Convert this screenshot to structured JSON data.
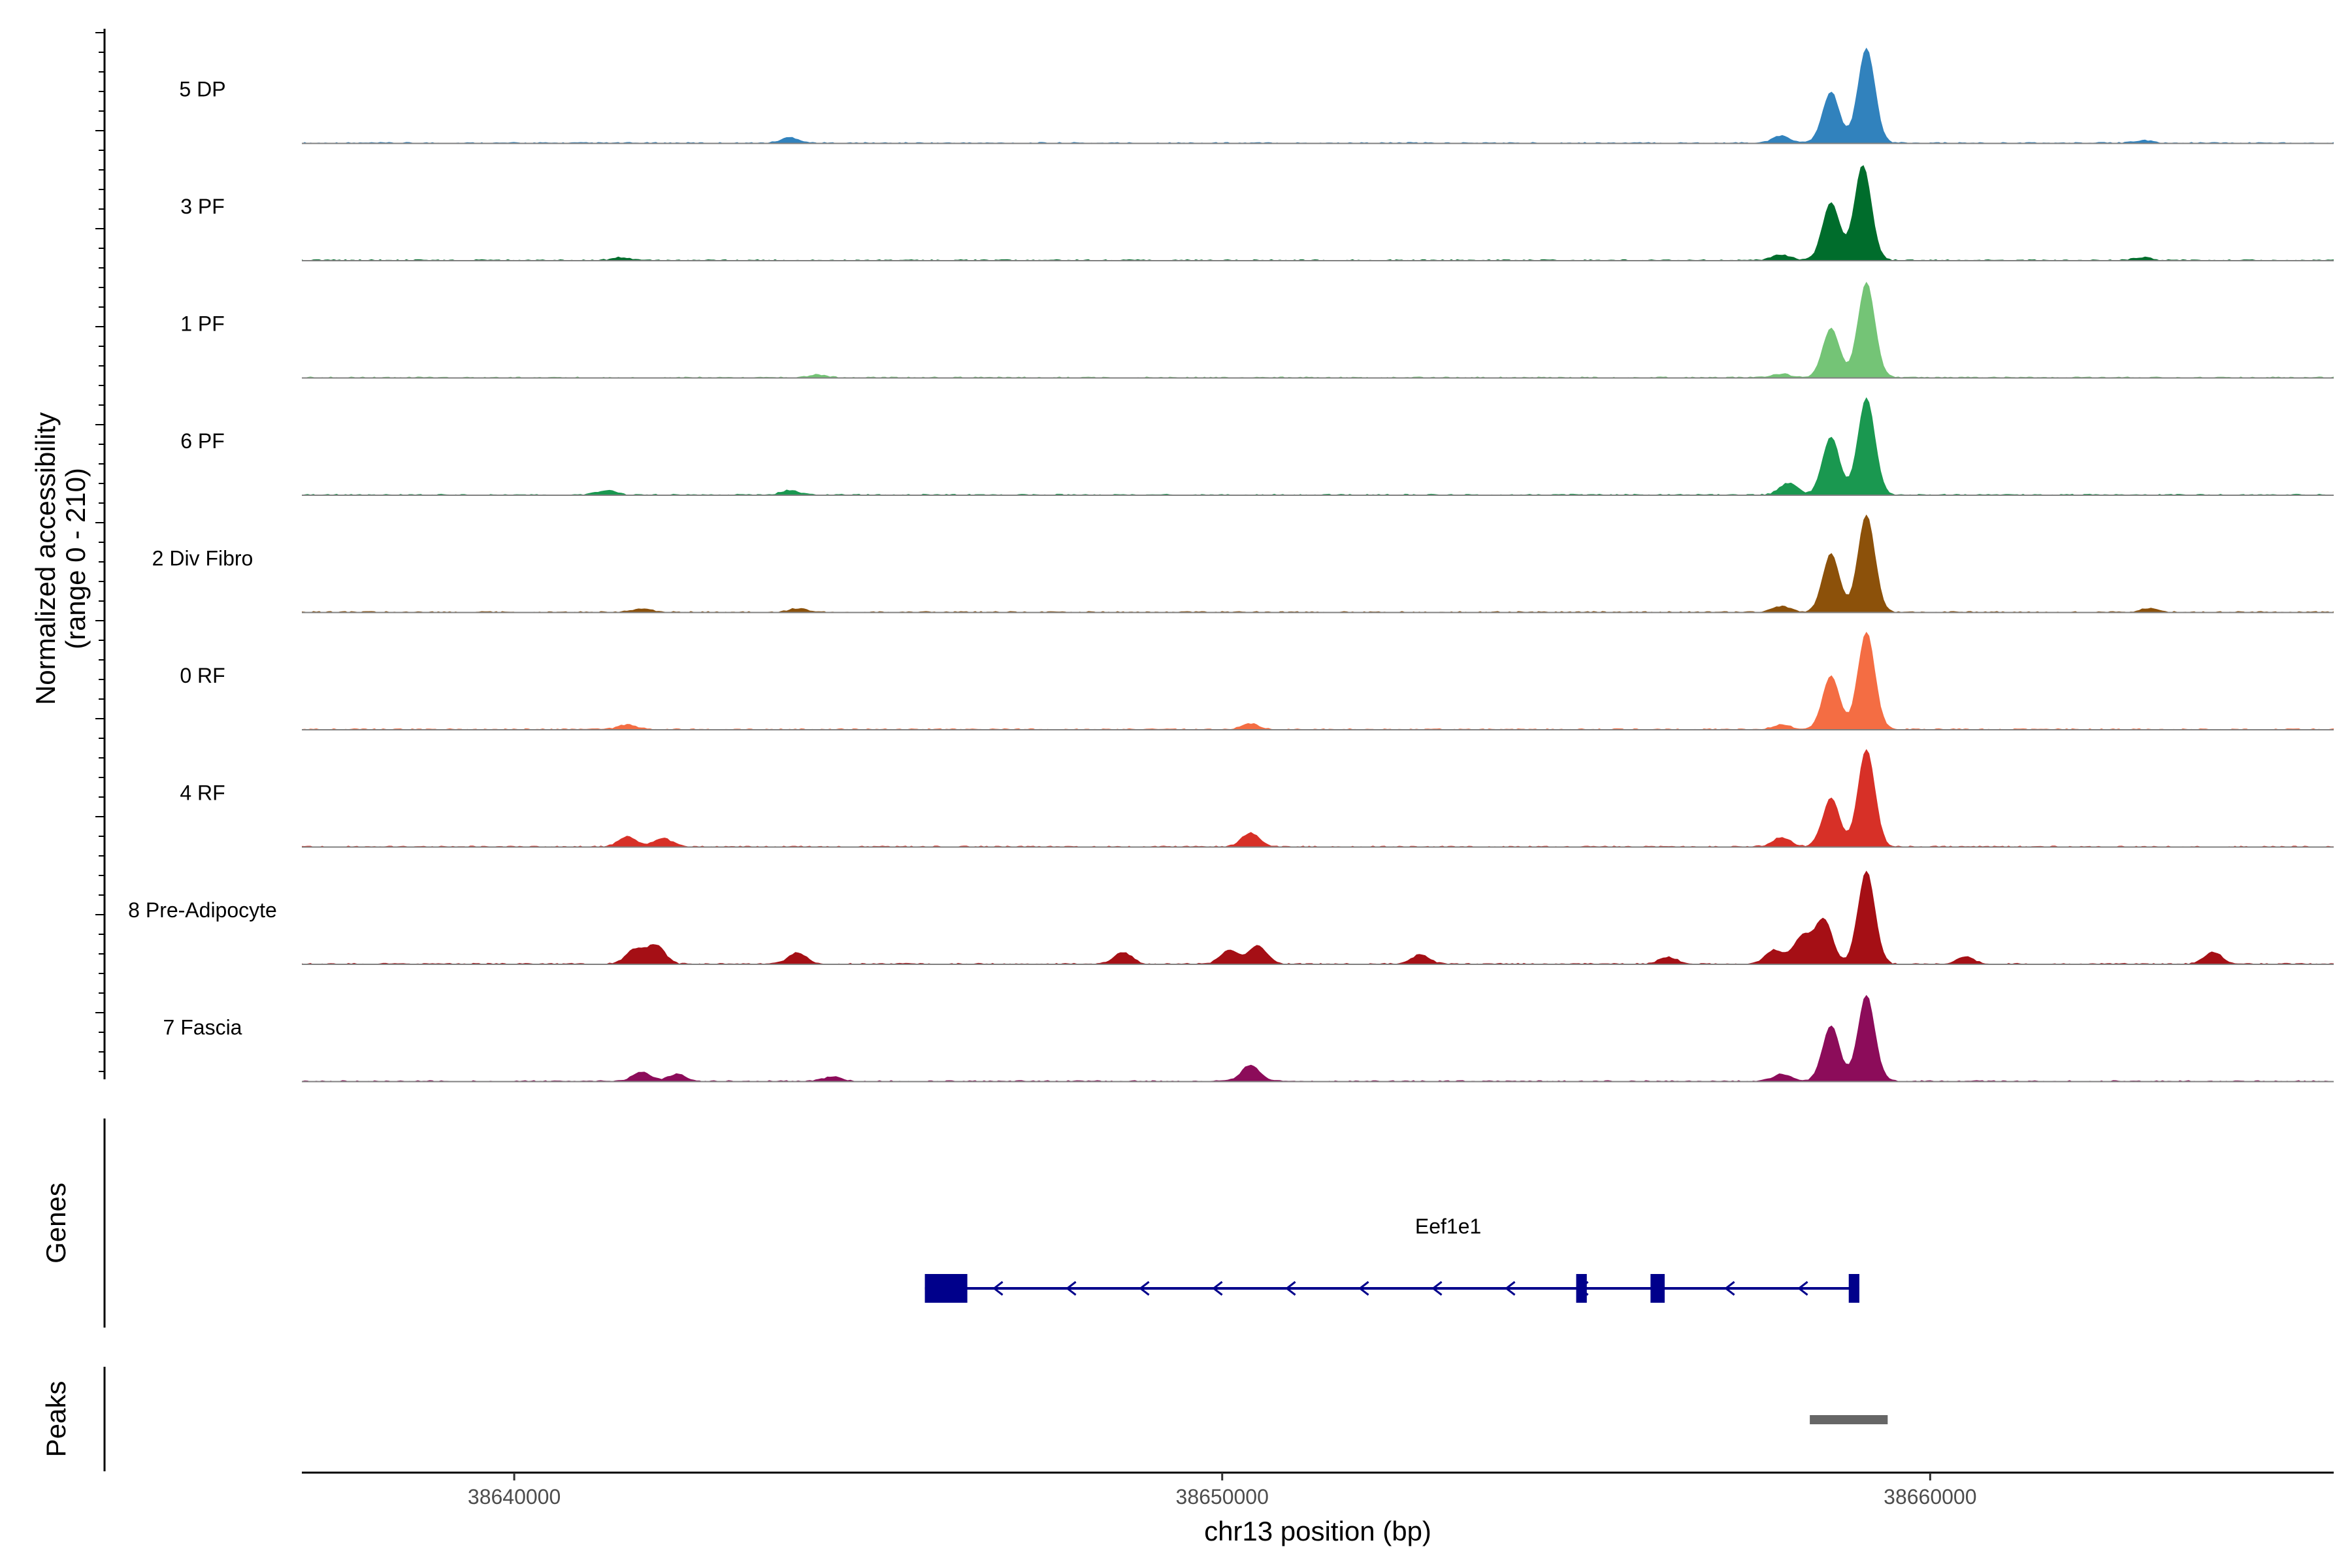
{
  "chart_data": {
    "type": "area",
    "ylabel": "Normalized accessibility",
    "ylabel_range": "(range 0 - 210)",
    "y_range": [
      0,
      210
    ],
    "xlabel": "chr13 position (bp)",
    "x_range": [
      38637000,
      38665700
    ],
    "x_ticks": [
      38640000,
      38650000,
      38660000
    ],
    "x_tick_labels": [
      "38640000",
      "38650000",
      "38660000"
    ],
    "series": [
      {
        "name": "5 DP",
        "color": "#3182bd",
        "peaks": [
          {
            "x": 38658600,
            "y": 110
          },
          {
            "x": 38659100,
            "y": 205
          }
        ],
        "bumps": [
          {
            "x": 38643900,
            "y": 12
          },
          {
            "x": 38657900,
            "y": 15
          },
          {
            "x": 38663000,
            "y": 6
          }
        ]
      },
      {
        "name": "3 PF",
        "color": "#006d2c",
        "peaks": [
          {
            "x": 38658600,
            "y": 125
          },
          {
            "x": 38659050,
            "y": 205
          }
        ],
        "bumps": [
          {
            "x": 38641500,
            "y": 6
          },
          {
            "x": 38657900,
            "y": 12
          },
          {
            "x": 38663000,
            "y": 6
          }
        ]
      },
      {
        "name": "1 PF",
        "color": "#74c476",
        "peaks": [
          {
            "x": 38658600,
            "y": 105
          },
          {
            "x": 38659100,
            "y": 205
          }
        ],
        "bumps": [
          {
            "x": 38644300,
            "y": 6
          },
          {
            "x": 38657900,
            "y": 8
          }
        ]
      },
      {
        "name": "6 PF",
        "color": "#1a9850",
        "peaks": [
          {
            "x": 38658600,
            "y": 125
          },
          {
            "x": 38659100,
            "y": 210
          }
        ],
        "bumps": [
          {
            "x": 38641300,
            "y": 10
          },
          {
            "x": 38643900,
            "y": 10
          },
          {
            "x": 38658000,
            "y": 25
          }
        ]
      },
      {
        "name": "2 Div Fibro",
        "color": "#8c510a",
        "peaks": [
          {
            "x": 38658600,
            "y": 125
          },
          {
            "x": 38659100,
            "y": 210
          }
        ],
        "bumps": [
          {
            "x": 38641800,
            "y": 8
          },
          {
            "x": 38644000,
            "y": 8
          },
          {
            "x": 38657900,
            "y": 12
          },
          {
            "x": 38663100,
            "y": 8
          }
        ]
      },
      {
        "name": "0 RF",
        "color": "#f46d43",
        "peaks": [
          {
            "x": 38658600,
            "y": 115
          },
          {
            "x": 38659100,
            "y": 210
          }
        ],
        "bumps": [
          {
            "x": 38641600,
            "y": 10
          },
          {
            "x": 38650400,
            "y": 12
          },
          {
            "x": 38657900,
            "y": 10
          }
        ]
      },
      {
        "name": "4 RF",
        "color": "#d73027",
        "peaks": [
          {
            "x": 38658600,
            "y": 105
          },
          {
            "x": 38659100,
            "y": 210
          }
        ],
        "bumps": [
          {
            "x": 38641600,
            "y": 22
          },
          {
            "x": 38642100,
            "y": 18
          },
          {
            "x": 38650400,
            "y": 30
          },
          {
            "x": 38657900,
            "y": 20
          }
        ]
      },
      {
        "name": "8 Pre-Adipocyte",
        "color": "#a50f15",
        "peaks": [
          {
            "x": 38658500,
            "y": 95
          },
          {
            "x": 38659100,
            "y": 200
          }
        ],
        "bumps": [
          {
            "x": 38641700,
            "y": 30
          },
          {
            "x": 38642000,
            "y": 40
          },
          {
            "x": 38644000,
            "y": 25
          },
          {
            "x": 38648600,
            "y": 25
          },
          {
            "x": 38650100,
            "y": 30
          },
          {
            "x": 38650500,
            "y": 40
          },
          {
            "x": 38652800,
            "y": 20
          },
          {
            "x": 38656300,
            "y": 15
          },
          {
            "x": 38657800,
            "y": 30
          },
          {
            "x": 38658200,
            "y": 60
          },
          {
            "x": 38660500,
            "y": 15
          },
          {
            "x": 38664000,
            "y": 25
          }
        ]
      },
      {
        "name": "7 Fascia",
        "color": "#8c0c5a",
        "peaks": [
          {
            "x": 38658600,
            "y": 120
          },
          {
            "x": 38659100,
            "y": 185
          }
        ],
        "bumps": [
          {
            "x": 38641800,
            "y": 20
          },
          {
            "x": 38642300,
            "y": 15
          },
          {
            "x": 38644500,
            "y": 10
          },
          {
            "x": 38650400,
            "y": 35
          },
          {
            "x": 38657900,
            "y": 15
          }
        ]
      }
    ],
    "genes": [
      {
        "name": "Eef1e1",
        "start": 38645800,
        "end": 38659000,
        "strand": "-",
        "exons": [
          [
            38645800,
            38646400
          ],
          [
            38655000,
            38655150
          ],
          [
            38656050,
            38656250
          ],
          [
            38658850,
            38659000
          ]
        ]
      }
    ],
    "peaks": [
      {
        "start": 38658300,
        "end": 38659400
      }
    ],
    "panel_labels": {
      "genes": "Genes",
      "peaks": "Peaks"
    }
  }
}
